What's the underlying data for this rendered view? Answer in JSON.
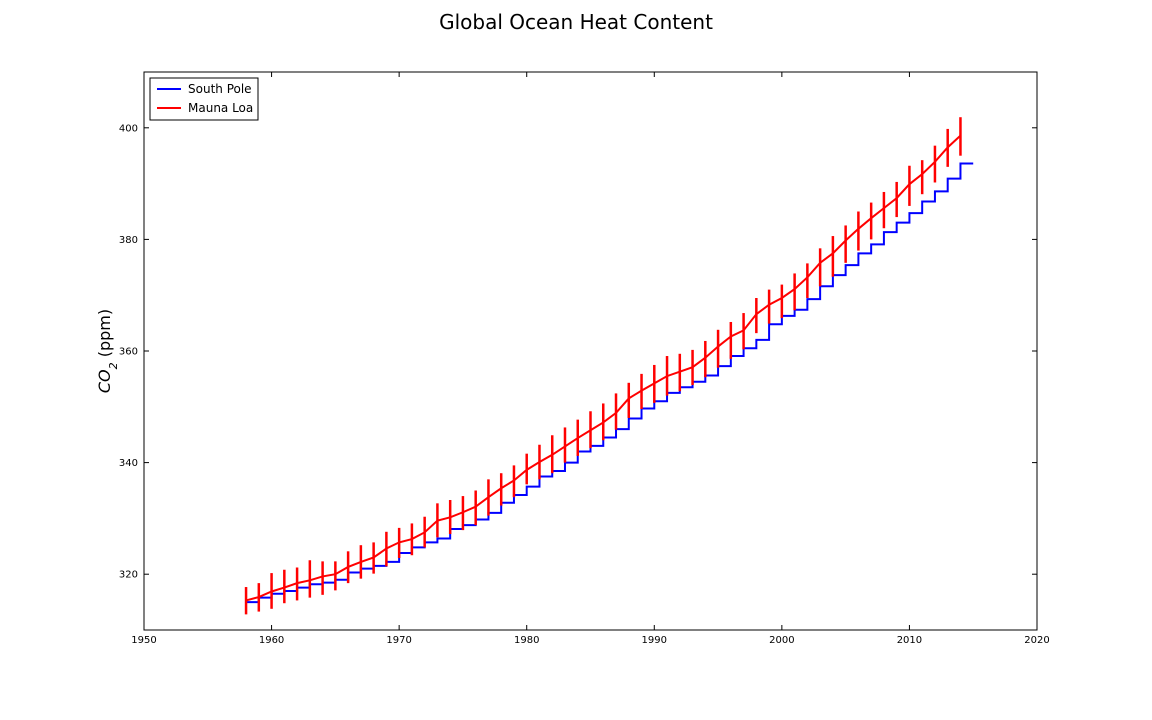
{
  "chart_data": {
    "type": "line",
    "title": "Global Ocean Heat Content",
    "xlabel": "",
    "ylabel": "CO2 (ppm)",
    "ylabel_main": "CO",
    "ylabel_sub": "2",
    "ylabel_unit": " (ppm)",
    "xlim": [
      1950,
      2020
    ],
    "ylim": [
      310,
      410
    ],
    "xticks": [
      1950,
      1960,
      1970,
      1980,
      1990,
      2000,
      2010,
      2020
    ],
    "yticks": [
      320,
      340,
      360,
      380,
      400
    ],
    "grid": false,
    "legend": "top-left",
    "series": [
      {
        "name": "South Pole",
        "color": "#0000ff",
        "style": "step",
        "x": [
          1958,
          1959,
          1960,
          1961,
          1962,
          1963,
          1964,
          1965,
          1966,
          1967,
          1968,
          1969,
          1970,
          1971,
          1972,
          1973,
          1974,
          1975,
          1976,
          1977,
          1978,
          1979,
          1980,
          1981,
          1982,
          1983,
          1984,
          1985,
          1986,
          1987,
          1988,
          1989,
          1990,
          1991,
          1992,
          1993,
          1994,
          1995,
          1996,
          1997,
          1998,
          1999,
          2000,
          2001,
          2002,
          2003,
          2004,
          2005,
          2006,
          2007,
          2008,
          2009,
          2010,
          2011,
          2012,
          2013,
          2014
        ],
        "values": [
          315.0,
          315.8,
          316.5,
          317.0,
          317.6,
          318.2,
          318.5,
          319.0,
          320.3,
          321.0,
          321.5,
          322.2,
          323.8,
          324.8,
          325.7,
          326.4,
          328.1,
          328.8,
          329.8,
          331.0,
          332.8,
          334.2,
          335.7,
          337.5,
          338.5,
          340.0,
          342.0,
          343.0,
          344.5,
          346.0,
          347.9,
          349.7,
          351.0,
          352.5,
          353.5,
          354.5,
          355.6,
          357.3,
          359.1,
          360.5,
          362.0,
          364.8,
          366.3,
          367.4,
          369.3,
          371.6,
          373.6,
          375.4,
          377.5,
          379.1,
          381.3,
          383.0,
          384.7,
          386.8,
          388.6,
          390.9,
          393.6
        ]
      },
      {
        "name": "Mauna Loa",
        "color": "#ff0000",
        "style": "seasonal",
        "x": [
          1958,
          1959,
          1960,
          1961,
          1962,
          1963,
          1964,
          1965,
          1966,
          1967,
          1968,
          1969,
          1970,
          1971,
          1972,
          1973,
          1974,
          1975,
          1976,
          1977,
          1978,
          1979,
          1980,
          1981,
          1982,
          1983,
          1984,
          1985,
          1986,
          1987,
          1988,
          1989,
          1990,
          1991,
          1992,
          1993,
          1994,
          1995,
          1996,
          1997,
          1998,
          1999,
          2000,
          2001,
          2002,
          2003,
          2004,
          2005,
          2006,
          2007,
          2008,
          2009,
          2010,
          2011,
          2012,
          2013,
          2014
        ],
        "values": [
          315.3,
          315.9,
          316.9,
          317.6,
          318.4,
          318.9,
          319.6,
          320.0,
          321.3,
          322.2,
          323.0,
          324.6,
          325.7,
          326.3,
          327.5,
          329.6,
          330.2,
          331.1,
          332.1,
          333.8,
          335.4,
          336.8,
          338.7,
          340.1,
          341.4,
          342.9,
          344.4,
          345.8,
          347.2,
          348.9,
          351.5,
          352.9,
          354.2,
          355.5,
          356.3,
          357.1,
          358.8,
          360.8,
          362.6,
          363.7,
          366.6,
          368.3,
          369.5,
          371.1,
          373.2,
          375.8,
          377.5,
          379.8,
          381.9,
          383.8,
          385.6,
          387.4,
          389.9,
          391.7,
          393.9,
          396.5,
          398.6
        ],
        "max": [
          317.7,
          318.4,
          320.2,
          320.8,
          321.2,
          322.5,
          322.3,
          322.3,
          324.1,
          325.2,
          325.7,
          327.6,
          328.3,
          329.1,
          330.3,
          332.7,
          333.3,
          334.0,
          335.0,
          337.0,
          338.1,
          339.5,
          341.6,
          343.2,
          344.9,
          346.3,
          347.7,
          349.2,
          350.6,
          352.4,
          354.3,
          355.9,
          357.5,
          359.1,
          359.5,
          360.2,
          361.8,
          363.8,
          365.2,
          366.8,
          369.5,
          371.0,
          371.9,
          373.9,
          375.7,
          378.4,
          380.6,
          382.5,
          385.0,
          386.6,
          388.5,
          390.3,
          393.2,
          394.2,
          396.8,
          399.8,
          401.9
        ],
        "min": [
          312.8,
          313.3,
          313.8,
          314.8,
          315.3,
          315.8,
          316.3,
          317.1,
          318.4,
          319.2,
          320.1,
          321.4,
          322.9,
          323.4,
          324.8,
          326.6,
          327.2,
          327.9,
          328.8,
          330.5,
          332.3,
          333.8,
          336.1,
          337.0,
          338.1,
          340.0,
          341.2,
          342.6,
          344.0,
          345.9,
          348.0,
          349.6,
          350.7,
          352.0,
          352.8,
          353.9,
          355.3,
          357.0,
          358.6,
          360.3,
          363.2,
          364.9,
          365.9,
          367.3,
          369.5,
          371.6,
          373.3,
          375.8,
          378.0,
          380.0,
          382.0,
          384.0,
          386.0,
          388.1,
          390.2,
          393.0,
          395.0
        ]
      }
    ]
  }
}
